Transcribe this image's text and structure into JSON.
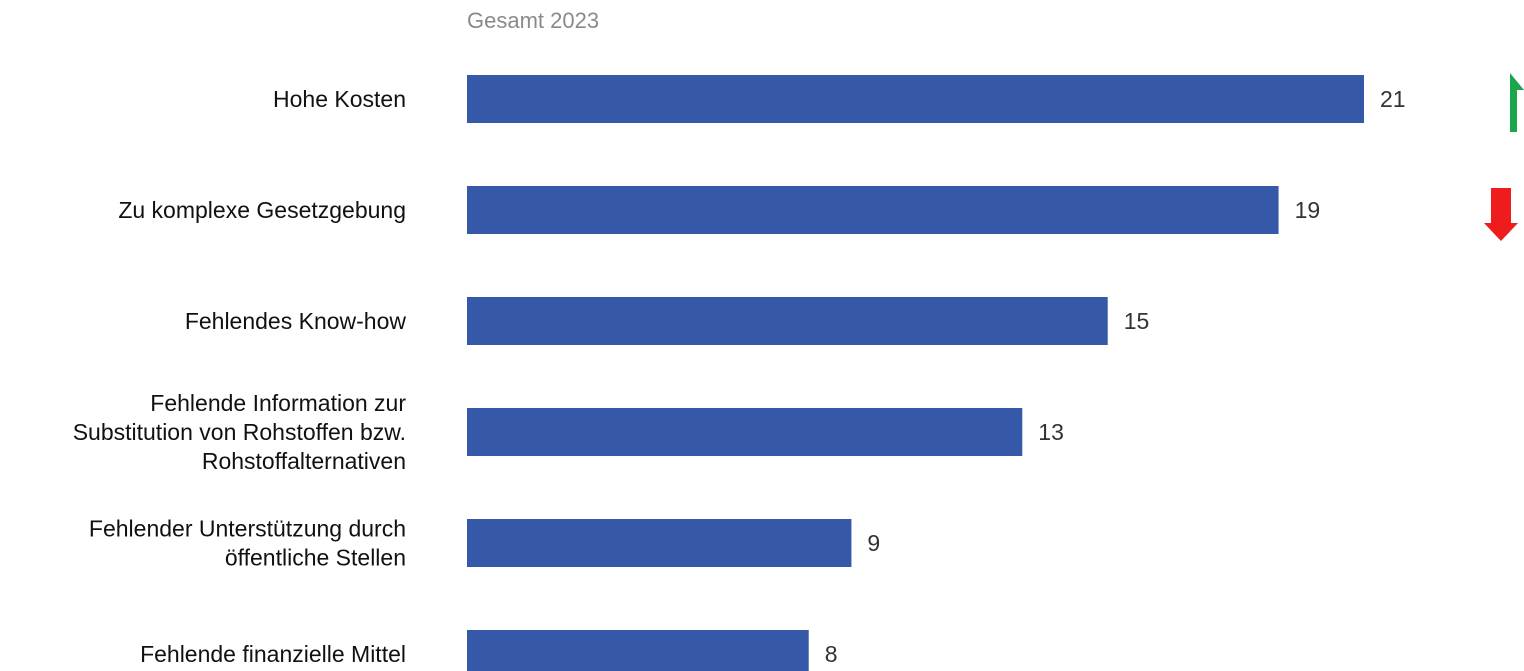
{
  "chart_data": {
    "type": "bar",
    "orientation": "horizontal",
    "title": "Gesamt 2023",
    "xlabel": "",
    "ylabel": "",
    "categories": [
      [
        "Hohe Kosten"
      ],
      [
        "Zu komplexe Gesetzgebung"
      ],
      [
        "Fehlendes Know-how"
      ],
      [
        "Fehlende Information zur",
        "Substitution von Rohstoffen bzw.",
        "Rohstoffalternativen"
      ],
      [
        "Fehlender Unterstützung durch",
        "öffentliche Stellen"
      ],
      [
        "Fehlende finanzielle Mittel"
      ]
    ],
    "series": [
      {
        "values": [
          21,
          19,
          15,
          13,
          9,
          8
        ]
      }
    ],
    "value_labels": [
      "21",
      "19",
      "15",
      "13",
      "9",
      "8"
    ],
    "xlim": [
      0,
      21
    ],
    "grid": false,
    "legend": "none",
    "trend_markers": [
      {
        "category_index": 0,
        "direction": "up",
        "icon": "arrow-up-icon",
        "color": "#1aa64a"
      },
      {
        "category_index": 1,
        "direction": "down",
        "icon": "arrow-down-icon",
        "color": "#ee1c1c"
      }
    ]
  },
  "colors": {
    "bar": "#3558a8",
    "title": "#8a8a8a",
    "category_text": "#111111",
    "value_text": "#333333"
  }
}
